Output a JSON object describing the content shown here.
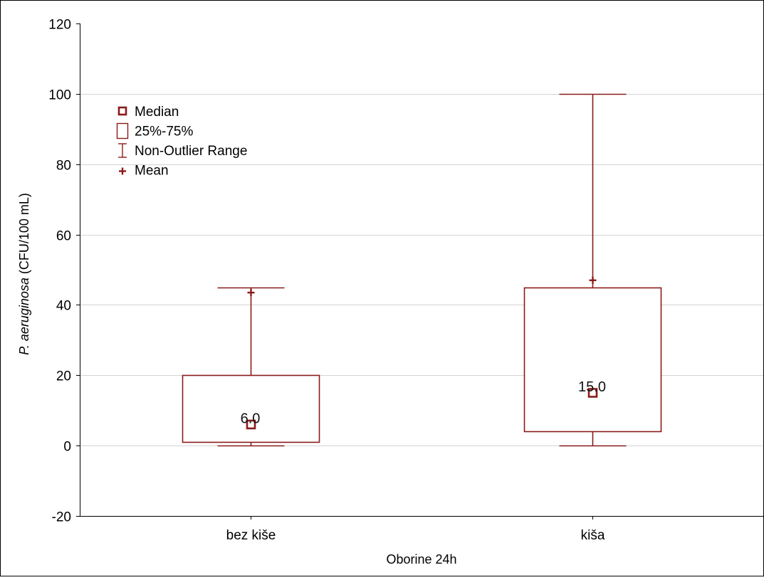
{
  "chart_data": {
    "type": "box",
    "xlabel": "Oborine 24h",
    "ylabel_italic": "P. aeruginosa",
    "ylabel_rest": " (CFU/100 mL)",
    "ylim": [
      -20,
      120
    ],
    "yticks": [
      -20,
      0,
      20,
      40,
      60,
      80,
      100,
      120
    ],
    "ytick_labels": [
      "-20",
      "0",
      "20",
      "40",
      "60",
      "80",
      "100",
      "120"
    ],
    "grid": true,
    "legend": {
      "placement": "top-left",
      "entries": [
        {
          "symbol": "median",
          "label": "Median"
        },
        {
          "symbol": "box",
          "label": "25%-75%"
        },
        {
          "symbol": "whisker",
          "label": "Non-Outlier Range"
        },
        {
          "symbol": "mean",
          "label": "Mean"
        }
      ]
    },
    "categories": [
      "bez kiše",
      "kiša"
    ],
    "boxes": [
      {
        "category": "bez kiše",
        "min": 0,
        "q1": 1,
        "median": 6,
        "q3": 20,
        "max": 45,
        "mean": 43.5,
        "median_label": "6.0"
      },
      {
        "category": "kiša",
        "min": 0,
        "q1": 4,
        "median": 15,
        "q3": 45,
        "max": 100,
        "mean": 47,
        "median_label": "15.0"
      }
    ],
    "colors": {
      "box": "#8b1a1a",
      "median": "#8b1a1a",
      "whisker": "#8b1a1a",
      "mean": "#8b1a1a",
      "grid": "#d4d4d4",
      "axis": "#000000"
    }
  }
}
